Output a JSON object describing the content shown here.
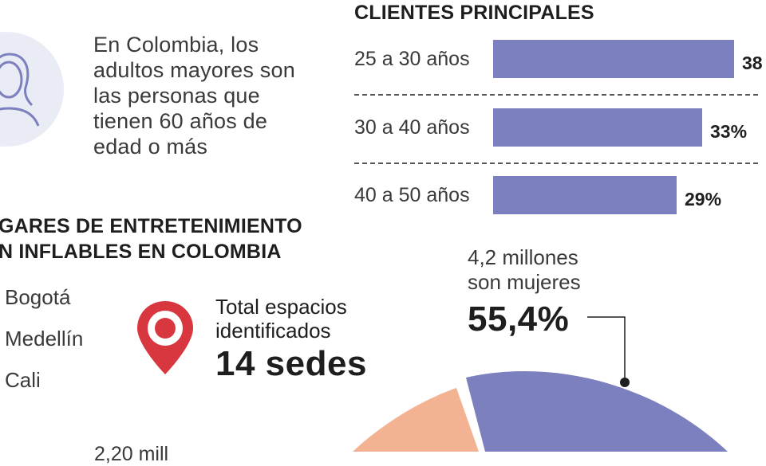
{
  "intro_text": "En Colombia, los adultos mayores son las personas que tienen 60 años de edad o más",
  "clients": {
    "title": "CLIENTES PRINCIPALES"
  },
  "places": {
    "title_line1": "GARES DE ENTRETENIMIENTO",
    "title_line2": "N INFLABLES EN COLOMBIA",
    "cities": [
      "Bogotá",
      "Medellín",
      "Cali"
    ],
    "total_label_line1": "Total espacios",
    "total_label_line2": "identificados",
    "total_value": "14 sedes"
  },
  "women": {
    "label_line1": "4,2 millones",
    "label_line2": "son mujeres",
    "percent": "55,4%"
  },
  "bottom_cut_text": "2,20 mill",
  "colors": {
    "bar": "#7c80be",
    "pie_women": "#7c80be",
    "pie_other": "#f3b393",
    "pin": "#d9373f",
    "avatar_bg": "#e9ebf5",
    "avatar_line": "#7c80be"
  },
  "chart_data": [
    {
      "type": "bar",
      "title": "CLIENTES PRINCIPALES",
      "categories": [
        "25 a 30 años",
        "30 a 40 años",
        "40 a 50 años"
      ],
      "values": [
        38,
        33,
        29
      ],
      "value_labels": [
        "38",
        "33%",
        "29%"
      ],
      "unit": "%",
      "orientation": "horizontal",
      "xlim": [
        0,
        38
      ]
    },
    {
      "type": "pie",
      "slices": [
        {
          "label": "son mujeres",
          "value": 55.4
        }
      ],
      "annotation": "4,2 millones son mujeres 55,4%"
    }
  ]
}
